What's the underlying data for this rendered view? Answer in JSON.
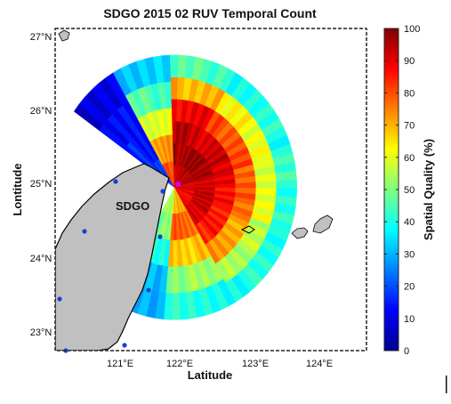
{
  "chart_data": {
    "type": "heatmap",
    "title": "SDGO 2015 02 RUV Temporal Count",
    "xlabel": "Latitude",
    "ylabel": "Lontitude",
    "station_label": "SDGO",
    "x_ticks": [
      "121°E",
      "122°E",
      "123°E",
      "124°E"
    ],
    "y_ticks": [
      "23°N",
      "24°N",
      "25°N",
      "26°N",
      "27°N"
    ],
    "xlim": [
      120.2,
      124.9
    ],
    "ylim": [
      22.7,
      27.2
    ],
    "station": {
      "lon": 122.0,
      "lat": 24.98
    },
    "colorbar": {
      "label": "Spatial Quality (%)",
      "min": 0,
      "max": 100,
      "ticks": [
        0,
        10,
        20,
        30,
        40,
        50,
        60,
        70,
        80,
        90,
        100
      ],
      "colormap": "jet"
    },
    "coverage": {
      "max_range_deg": 1.85,
      "sectors": [
        {
          "from_deg": 305,
          "to_deg": 330,
          "quality": [
            18,
            15,
            12,
            10
          ]
        },
        {
          "from_deg": 330,
          "to_deg": 358,
          "quality": [
            80,
            72,
            60,
            45,
            32
          ]
        },
        {
          "from_deg": 358,
          "to_deg": 30,
          "quality": [
            92,
            96,
            94,
            88,
            70,
            45
          ]
        },
        {
          "from_deg": 30,
          "to_deg": 75,
          "quality": [
            95,
            97,
            92,
            80,
            62,
            40
          ]
        },
        {
          "from_deg": 75,
          "to_deg": 110,
          "quality": [
            90,
            93,
            88,
            78,
            60,
            42
          ]
        },
        {
          "from_deg": 110,
          "to_deg": 150,
          "quality": [
            88,
            92,
            85,
            72,
            55,
            40
          ]
        },
        {
          "from_deg": 150,
          "to_deg": 185,
          "quality": [
            70,
            78,
            68,
            52,
            40
          ]
        },
        {
          "from_deg": 185,
          "to_deg": 210,
          "quality": [
            55,
            50,
            40,
            32,
            28
          ]
        }
      ]
    }
  },
  "colors": {
    "land": "#c0c0c0",
    "coast": "#000000",
    "coastal_station_dot": "#1a3fd6",
    "station_dot": "#e000e0",
    "background": "#ffffff"
  }
}
